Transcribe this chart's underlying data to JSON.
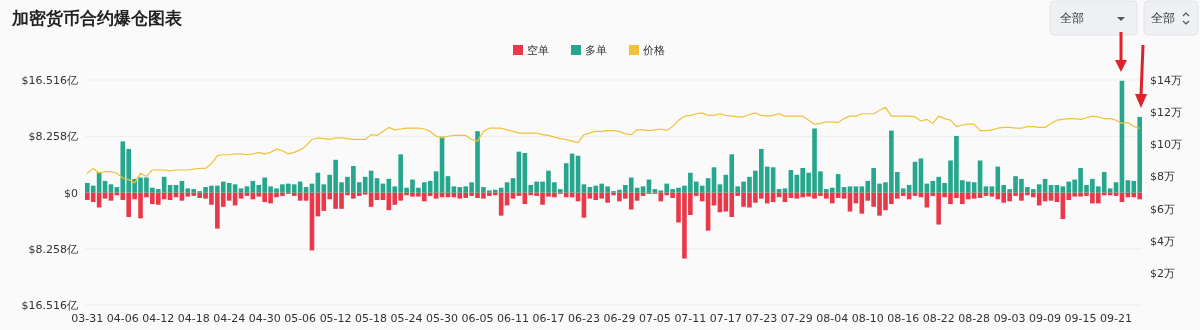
{
  "chart_data": {
    "type": "bar",
    "title": "加密货币合约爆仓图表",
    "stacked": true,
    "legend": "top",
    "grid": "y",
    "annotations": [
      "全部",
      "全部"
    ],
    "categories": [
      "03-31",
      null,
      null,
      null,
      null,
      null,
      "04-06",
      null,
      null,
      null,
      null,
      null,
      "04-12",
      null,
      null,
      null,
      null,
      null,
      "04-18",
      null,
      null,
      null,
      null,
      null,
      "04-24",
      null,
      null,
      null,
      null,
      null,
      "04-30",
      null,
      null,
      null,
      null,
      null,
      "05-06",
      null,
      null,
      null,
      null,
      null,
      "05-12",
      null,
      null,
      null,
      null,
      null,
      "05-18",
      null,
      null,
      null,
      null,
      null,
      "05-24",
      null,
      null,
      null,
      null,
      null,
      "05-30",
      null,
      null,
      null,
      null,
      null,
      "06-05",
      null,
      null,
      null,
      null,
      null,
      "06-11",
      null,
      null,
      null,
      null,
      null,
      "06-17",
      null,
      null,
      null,
      null,
      null,
      "06-23",
      null,
      null,
      null,
      null,
      null,
      "06-29",
      null,
      null,
      null,
      null,
      null,
      "07-05",
      null,
      null,
      null,
      null,
      null,
      "07-11",
      null,
      null,
      null,
      null,
      null,
      "07-17",
      null,
      null,
      null,
      null,
      null,
      "07-23",
      null,
      null,
      null,
      null,
      null,
      "07-29",
      null,
      null,
      null,
      null,
      null,
      "08-04",
      null,
      null,
      null,
      null,
      null,
      "08-10",
      null,
      null,
      null,
      null,
      null,
      "08-16",
      null,
      null,
      null,
      null,
      null,
      "08-22",
      null,
      null,
      null,
      null,
      null,
      "08-28",
      null,
      null,
      null,
      null,
      null,
      "09-03",
      null,
      null,
      null,
      null,
      null,
      "09-09",
      null,
      null,
      null,
      null,
      null,
      "09-15",
      null,
      null,
      null,
      null,
      null,
      "09-21",
      null,
      null,
      null,
      null
    ],
    "ylim": [
      -16.516,
      16.516
    ],
    "yticks": [
      {
        "value": -16.516,
        "label": "$16.516亿"
      },
      {
        "value": -8.258,
        "label": "$8.258亿"
      },
      {
        "value": 0,
        "label": "$0"
      },
      {
        "value": 8.258,
        "label": "$8.258亿"
      },
      {
        "value": 16.516,
        "label": "$16.516亿"
      }
    ],
    "y2lim": [
      0,
      14
    ],
    "y2ticks": [
      {
        "value": 2,
        "label": "$2万"
      },
      {
        "value": 4,
        "label": "$4万"
      },
      {
        "value": 6,
        "label": "$6万"
      },
      {
        "value": 8,
        "label": "$8万"
      },
      {
        "value": 10,
        "label": "$10万"
      },
      {
        "value": 12,
        "label": "$12万"
      },
      {
        "value": 14,
        "label": "$14万"
      }
    ],
    "series": [
      {
        "name": "空单",
        "color": "#e8394a",
        "values": [
          -1.1,
          -1.4,
          -2.2,
          -0.9,
          -1.2,
          -0.4,
          -1.1,
          -3.6,
          -1.0,
          -3.8,
          -0.7,
          -1.7,
          -1.8,
          -1.0,
          -1.1,
          -0.7,
          -1.2,
          -0.6,
          -0.5,
          -0.8,
          -0.9,
          -1.8,
          -5.3,
          -2.1,
          -1.2,
          -1.9,
          -0.9,
          -0.5,
          -1.0,
          -0.6,
          -1.4,
          -1.6,
          -0.7,
          -0.5,
          -0.2,
          -0.5,
          -1.2,
          -1.2,
          -8.5,
          -3.5,
          -2.7,
          -1.0,
          -2.4,
          -2.4,
          -0.4,
          -0.9,
          -0.5,
          -0.3,
          -2.1,
          -1.1,
          -1.1,
          -2.6,
          -1.8,
          -1.2,
          -0.4,
          -0.6,
          -0.6,
          -1.3,
          -0.5,
          -0.9,
          -0.7,
          -0.7,
          -0.7,
          -0.9,
          -0.8,
          -0.5,
          -0.8,
          -0.9,
          -0.5,
          -0.4,
          -3.4,
          -1.9,
          -0.9,
          -0.5,
          -1.7,
          -0.4,
          -0.5,
          -1.8,
          -0.6,
          -0.7,
          -0.2,
          -0.7,
          -0.7,
          -1.3,
          -3.7,
          -0.9,
          -1.1,
          -0.9,
          -1.5,
          -0.4,
          -1.3,
          -0.9,
          -2.5,
          -1.2,
          -0.5,
          -0.2,
          -0.2,
          -1.3,
          -0.4,
          -0.8,
          -4.4,
          -9.7,
          -3.3,
          -0.5,
          -1.3,
          -5.6,
          -1.9,
          -2.9,
          -2.8,
          -3.6,
          -0.5,
          -2.1,
          -2.2,
          -1.5,
          -0.9,
          -1.6,
          -1.4,
          -0.7,
          -1.4,
          -0.8,
          -0.9,
          -0.7,
          -0.6,
          -0.9,
          -0.5,
          -0.9,
          -1.6,
          -0.8,
          -0.9,
          -2.8,
          -1.6,
          -3.1,
          -1.2,
          -2.1,
          -3.4,
          -2.6,
          -1.7,
          -0.9,
          -0.5,
          -1.0,
          -0.5,
          -0.7,
          -2.2,
          -0.5,
          -4.7,
          -0.7,
          -1.7,
          -0.8,
          -1.7,
          -1.0,
          -0.9,
          -0.8,
          -0.5,
          -0.6,
          -1.0,
          -1.5,
          -1.3,
          -0.5,
          -1.2,
          -0.4,
          -0.7,
          -1.9,
          -1.3,
          -1.2,
          -1.4,
          -3.9,
          -1.1,
          -0.6,
          -0.6,
          -0.5,
          -1.6,
          -1.6,
          -0.4,
          -0.4,
          -0.5,
          -1.4,
          -0.7,
          -0.7,
          -1.0
        ]
      },
      {
        "name": "多单",
        "color": "#26a68c",
        "values": [
          1.4,
          1.0,
          3.0,
          1.7,
          1.2,
          0.8,
          7.5,
          6.4,
          2.0,
          2.2,
          2.2,
          0.7,
          0.5,
          2.3,
          1.1,
          1.1,
          1.7,
          0.6,
          0.5,
          0.2,
          0.8,
          1.0,
          1.0,
          1.6,
          1.4,
          1.2,
          0.6,
          0.9,
          1.7,
          1.1,
          2.2,
          0.9,
          0.6,
          1.2,
          1.3,
          1.2,
          1.6,
          0.8,
          1.3,
          2.9,
          1.2,
          2.6,
          4.8,
          1.5,
          2.3,
          3.9,
          1.5,
          2.3,
          3.2,
          2.1,
          1.3,
          2.0,
          0.9,
          5.6,
          0.7,
          1.9,
          0.7,
          1.5,
          1.7,
          3.1,
          8.2,
          2.4,
          0.9,
          0.8,
          0.9,
          1.5,
          9.0,
          0.8,
          0.3,
          0.4,
          0.7,
          1.5,
          2.1,
          6.0,
          5.8,
          1.1,
          1.6,
          1.6,
          3.2,
          1.5,
          0.5,
          4.3,
          5.7,
          5.4,
          1.2,
          0.8,
          1.0,
          1.3,
          0.9,
          0.2,
          0.4,
          1.1,
          2.2,
          0.7,
          0.9,
          1.9,
          0.5,
          0.3,
          1.3,
          0.5,
          0.7,
          1.0,
          2.9,
          1.6,
          1.0,
          2.1,
          3.7,
          1.2,
          2.6,
          5.6,
          0.9,
          1.6,
          2.3,
          3.2,
          6.4,
          3.8,
          3.7,
          0.5,
          0.6,
          3.3,
          2.6,
          3.6,
          2.9,
          9.4,
          3.1,
          0.5,
          0.7,
          2.7,
          0.8,
          0.9,
          0.9,
          0.9,
          1.7,
          3.6,
          1.3,
          1.5,
          9.1,
          3.0,
          0.6,
          1.1,
          4.5,
          5.0,
          1.3,
          1.7,
          2.3,
          1.4,
          4.7,
          8.3,
          1.8,
          1.6,
          1.5,
          4.7,
          0.9,
          0.9,
          3.8,
          1.1,
          0.5,
          2.4,
          2.0,
          0.8,
          0.5,
          1.2,
          2.0,
          1.1,
          1.1,
          0.9,
          1.6,
          1.9,
          3.6,
          1.1,
          2.0,
          0.9,
          3.0,
          0.6,
          1.5,
          16.4,
          1.8,
          1.7,
          11.1
        ]
      },
      {
        "name": "价格",
        "type": "line",
        "axis": "y2",
        "color": "#efc23a",
        "values": [
          8.2,
          8.5,
          8.2,
          8.3,
          8.3,
          8.2,
          7.9,
          7.8,
          7.6,
          8.2,
          8.0,
          8.4,
          8.4,
          8.4,
          8.35,
          8.4,
          8.4,
          8.4,
          8.45,
          8.5,
          8.5,
          8.8,
          9.3,
          9.35,
          9.35,
          9.4,
          9.4,
          9.35,
          9.4,
          9.5,
          9.4,
          9.5,
          9.7,
          9.6,
          9.4,
          9.5,
          9.65,
          9.9,
          10.3,
          10.4,
          10.35,
          10.3,
          10.4,
          10.4,
          10.35,
          10.3,
          10.3,
          10.3,
          10.6,
          10.55,
          10.8,
          11.05,
          10.9,
          10.95,
          11.0,
          11.0,
          11.0,
          10.95,
          10.8,
          10.5,
          10.4,
          10.5,
          10.55,
          10.55,
          10.55,
          10.3,
          10.2,
          10.8,
          11.0,
          11.0,
          11.0,
          10.9,
          10.8,
          10.7,
          10.7,
          10.7,
          10.7,
          10.6,
          10.55,
          10.45,
          10.35,
          10.3,
          10.2,
          10.1,
          10.6,
          10.7,
          10.8,
          10.8,
          10.85,
          10.85,
          10.8,
          10.65,
          10.6,
          10.9,
          10.9,
          10.85,
          10.9,
          10.95,
          10.85,
          11.1,
          11.5,
          11.75,
          11.8,
          11.9,
          11.95,
          11.8,
          11.8,
          11.9,
          11.8,
          11.75,
          11.7,
          11.7,
          11.85,
          11.95,
          11.8,
          11.75,
          11.8,
          11.9,
          11.75,
          11.75,
          11.75,
          11.75,
          11.5,
          11.25,
          11.3,
          11.4,
          11.4,
          11.35,
          11.6,
          11.75,
          11.75,
          11.9,
          11.9,
          11.9,
          12.1,
          12.3,
          11.75,
          11.75,
          11.75,
          11.75,
          11.7,
          11.45,
          11.55,
          11.3,
          11.75,
          11.6,
          11.5,
          11.1,
          11.2,
          11.25,
          11.25,
          10.85,
          10.85,
          10.9,
          11.0,
          11.05,
          11.05,
          11.0,
          11.0,
          11.1,
          11.1,
          11.05,
          11.05,
          11.3,
          11.5,
          11.55,
          11.6,
          11.6,
          11.55,
          11.65,
          11.75,
          11.7,
          11.6,
          11.6,
          11.5,
          11.3,
          11.35,
          11.1,
          11.0
        ]
      }
    ]
  }
}
